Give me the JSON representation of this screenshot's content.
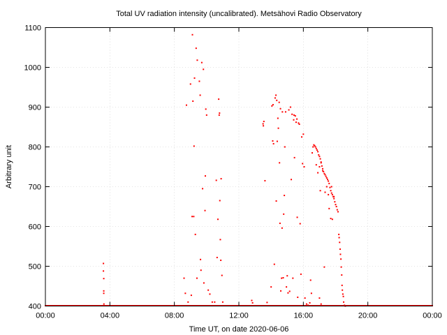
{
  "chart_data": {
    "type": "scatter",
    "title": "Total UV radiation intensity (uncalibrated). Metsähovi Radio Observatory",
    "xlabel": "Time UT, on date 2020-06-06",
    "ylabel": "Arbitrary unit",
    "xlim_hours": [
      0,
      24
    ],
    "ylim": [
      400,
      1100
    ],
    "x_ticks": [
      {
        "value": 0,
        "label": "00:00"
      },
      {
        "value": 4,
        "label": "04:00"
      },
      {
        "value": 8,
        "label": "08:00"
      },
      {
        "value": 12,
        "label": "12:00"
      },
      {
        "value": 16,
        "label": "16:00"
      },
      {
        "value": 20,
        "label": "20:00"
      },
      {
        "value": 24,
        "label": "00:00"
      }
    ],
    "y_ticks": [
      400,
      500,
      600,
      700,
      800,
      900,
      1000,
      1100
    ],
    "grid": true,
    "legend": "none",
    "marker_color": "#ff0000",
    "baseline_value": 400,
    "series": [
      {
        "points": [
          [
            3.6,
            507
          ],
          [
            3.6,
            488
          ],
          [
            3.62,
            469
          ],
          [
            3.62,
            438
          ],
          [
            3.62,
            432
          ],
          [
            3.63,
            405
          ],
          [
            8.6,
            470
          ],
          [
            8.68,
            432
          ],
          [
            8.75,
            905
          ],
          [
            8.85,
            410
          ],
          [
            9.0,
            958
          ],
          [
            9.05,
            427
          ],
          [
            9.1,
            625
          ],
          [
            9.12,
            1082
          ],
          [
            9.15,
            915
          ],
          [
            9.2,
            625
          ],
          [
            9.22,
            802
          ],
          [
            9.25,
            973
          ],
          [
            9.3,
            580
          ],
          [
            9.35,
            1048
          ],
          [
            9.4,
            470
          ],
          [
            9.42,
            1018
          ],
          [
            9.55,
            965
          ],
          [
            9.6,
            930
          ],
          [
            9.62,
            517
          ],
          [
            9.65,
            490
          ],
          [
            9.7,
            1012
          ],
          [
            9.75,
            695
          ],
          [
            9.8,
            995
          ],
          [
            9.83,
            458
          ],
          [
            9.9,
            640
          ],
          [
            9.92,
            727
          ],
          [
            9.95,
            895
          ],
          [
            10.0,
            880
          ],
          [
            10.1,
            440
          ],
          [
            10.2,
            430
          ],
          [
            10.35,
            410
          ],
          [
            10.5,
            410
          ],
          [
            10.6,
            716
          ],
          [
            10.65,
            522
          ],
          [
            10.7,
            618
          ],
          [
            10.75,
            920
          ],
          [
            10.78,
            880
          ],
          [
            10.8,
            885
          ],
          [
            10.82,
            665
          ],
          [
            10.85,
            567
          ],
          [
            10.88,
            515
          ],
          [
            10.9,
            720
          ],
          [
            10.95,
            477
          ],
          [
            11.0,
            410
          ],
          [
            12.8,
            414
          ],
          [
            12.85,
            408
          ],
          [
            13.5,
            858
          ],
          [
            13.52,
            853
          ],
          [
            13.55,
            864
          ],
          [
            13.62,
            715
          ],
          [
            13.75,
            409
          ],
          [
            14.0,
            448
          ],
          [
            14.05,
            903
          ],
          [
            14.1,
            815
          ],
          [
            14.12,
            906
          ],
          [
            14.15,
            808
          ],
          [
            14.2,
            505
          ],
          [
            14.25,
            923
          ],
          [
            14.3,
            930
          ],
          [
            14.32,
            664
          ],
          [
            14.35,
            917
          ],
          [
            14.38,
            814
          ],
          [
            14.42,
            872
          ],
          [
            14.45,
            847
          ],
          [
            14.5,
            912
          ],
          [
            14.52,
            760
          ],
          [
            14.55,
            608
          ],
          [
            14.58,
            896
          ],
          [
            14.6,
            438
          ],
          [
            14.65,
            470
          ],
          [
            14.68,
            596
          ],
          [
            14.7,
            888
          ],
          [
            14.75,
            471
          ],
          [
            14.78,
            631
          ],
          [
            14.82,
            678
          ],
          [
            14.85,
            800
          ],
          [
            14.9,
            888
          ],
          [
            14.95,
            448
          ],
          [
            15.0,
            476
          ],
          [
            15.05,
            433
          ],
          [
            15.1,
            893
          ],
          [
            15.15,
            437
          ],
          [
            15.2,
            900
          ],
          [
            15.25,
            718
          ],
          [
            15.3,
            882
          ],
          [
            15.35,
            470
          ],
          [
            15.4,
            868
          ],
          [
            15.42,
            880
          ],
          [
            15.45,
            773
          ],
          [
            15.5,
            878
          ],
          [
            15.55,
            862
          ],
          [
            15.6,
            870
          ],
          [
            15.62,
            623
          ],
          [
            15.65,
            422
          ],
          [
            15.7,
            860
          ],
          [
            15.75,
            857
          ],
          [
            15.8,
            607
          ],
          [
            15.85,
            480
          ],
          [
            15.9,
            825
          ],
          [
            15.95,
            758
          ],
          [
            16.0,
            832
          ],
          [
            16.05,
            750
          ],
          [
            16.1,
            420
          ],
          [
            16.2,
            405
          ],
          [
            16.3,
            402
          ],
          [
            16.4,
            408
          ],
          [
            16.45,
            465
          ],
          [
            16.5,
            432
          ],
          [
            16.55,
            785
          ],
          [
            16.6,
            800
          ],
          [
            16.65,
            805
          ],
          [
            16.7,
            803
          ],
          [
            16.75,
            800
          ],
          [
            16.8,
            796
          ],
          [
            16.85,
            792
          ],
          [
            16.9,
            788
          ],
          [
            16.95,
            780
          ],
          [
            17.0,
            776
          ],
          [
            17.05,
            770
          ],
          [
            17.1,
            762
          ],
          [
            17.15,
            752
          ],
          [
            17.2,
            745
          ],
          [
            17.25,
            738
          ],
          [
            17.3,
            733
          ],
          [
            17.35,
            730
          ],
          [
            17.4,
            726
          ],
          [
            17.45,
            722
          ],
          [
            17.5,
            718
          ],
          [
            17.55,
            714
          ],
          [
            17.6,
            708
          ],
          [
            17.65,
            698
          ],
          [
            17.7,
            690
          ],
          [
            17.75,
            684
          ],
          [
            17.8,
            680
          ],
          [
            17.85,
            675
          ],
          [
            17.9,
            670
          ],
          [
            17.95,
            662
          ],
          [
            18.0,
            655
          ],
          [
            18.05,
            650
          ],
          [
            18.1,
            642
          ],
          [
            18.15,
            637
          ],
          [
            16.8,
            755
          ],
          [
            16.9,
            735
          ],
          [
            17.0,
            750
          ],
          [
            17.05,
            690
          ],
          [
            17.1,
            760
          ],
          [
            17.2,
            740
          ],
          [
            17.3,
            498
          ],
          [
            17.35,
            686
          ],
          [
            17.45,
            700
          ],
          [
            17.55,
            680
          ],
          [
            17.6,
            645
          ],
          [
            17.7,
            620
          ],
          [
            17.75,
            700
          ],
          [
            17.8,
            618
          ],
          [
            17.9,
            675
          ],
          [
            17.0,
            420
          ],
          [
            17.1,
            405
          ],
          [
            18.2,
            580
          ],
          [
            18.22,
            572
          ],
          [
            18.25,
            560
          ],
          [
            18.28,
            543
          ],
          [
            18.3,
            530
          ],
          [
            18.33,
            518
          ],
          [
            18.35,
            498
          ],
          [
            18.38,
            478
          ],
          [
            18.4,
            452
          ],
          [
            18.42,
            440
          ],
          [
            18.45,
            430
          ],
          [
            18.48,
            424
          ],
          [
            18.5,
            410
          ],
          [
            18.55,
            402
          ],
          [
            18.6,
            400
          ]
        ]
      }
    ]
  }
}
